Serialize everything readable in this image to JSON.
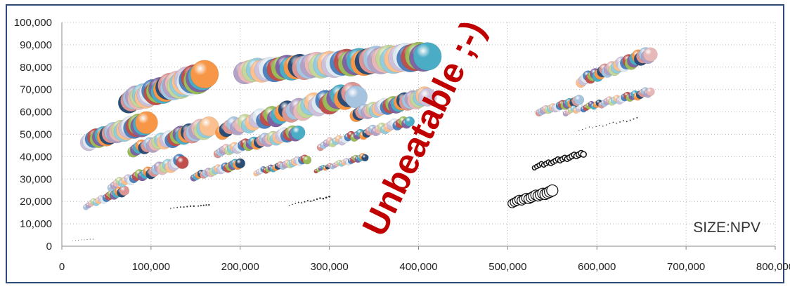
{
  "chart_data": {
    "type": "scatter",
    "title": "",
    "xlabel": "",
    "ylabel": "",
    "xlim": [
      0,
      800000
    ],
    "ylim": [
      0,
      100000
    ],
    "x_ticks": [
      "0",
      "100,000",
      "200,000",
      "300,000",
      "400,000",
      "500,000",
      "600,000",
      "700,000",
      "800,000"
    ],
    "y_ticks": [
      "0",
      "10,000",
      "20,000",
      "30,000",
      "40,000",
      "50,000",
      "60,000",
      "70,000",
      "80,000",
      "90,000",
      "100,000"
    ],
    "grid": "dotted",
    "bubble_size_legend": "SIZE:NPV",
    "annotation": "Unbeatable ;-)",
    "palette": [
      "#4f81bd",
      "#c0504d",
      "#9bbb59",
      "#8064a2",
      "#4bacc6",
      "#f79646",
      "#2c4d75",
      "#d99694",
      "#a6c3e0",
      "#b3a2c7",
      "#e6b9b8",
      "#c4d79b",
      "#93cddd",
      "#fac090",
      "#ccc0da",
      "#dde8f1"
    ],
    "series": [
      {
        "x_start": 12000,
        "x_end": 35000,
        "y_start": 2500,
        "y_end": 3200,
        "n": 8,
        "size_start": 0.4,
        "size_end": 0.6
      },
      {
        "x_start": 27000,
        "x_end": 70000,
        "y_start": 18000,
        "y_end": 25000,
        "n": 16,
        "size_start": 4,
        "size_end": 7
      },
      {
        "x_start": 55000,
        "x_end": 135000,
        "y_start": 27000,
        "y_end": 38000,
        "n": 26,
        "size_start": 5,
        "size_end": 9
      },
      {
        "x_start": 80000,
        "x_end": 165000,
        "y_start": 43000,
        "y_end": 53000,
        "n": 28,
        "size_start": 8,
        "size_end": 14
      },
      {
        "x_start": 30000,
        "x_end": 95000,
        "y_start": 47000,
        "y_end": 55000,
        "n": 24,
        "size_start": 12,
        "size_end": 16
      },
      {
        "x_start": 75000,
        "x_end": 160000,
        "y_start": 65000,
        "y_end": 76000,
        "n": 32,
        "size_start": 15,
        "size_end": 20
      },
      {
        "x_start": 122000,
        "x_end": 148000,
        "y_start": 17000,
        "y_end": 18000,
        "n": 8,
        "size_start": 0.8,
        "size_end": 1.2
      },
      {
        "x_start": 153000,
        "x_end": 165000,
        "y_start": 18000,
        "y_end": 18500,
        "n": 5,
        "size_start": 1,
        "size_end": 1.2
      },
      {
        "x_start": 148000,
        "x_end": 200000,
        "y_start": 31000,
        "y_end": 37000,
        "n": 20,
        "size_start": 5,
        "size_end": 7
      },
      {
        "x_start": 175000,
        "x_end": 265000,
        "y_start": 42000,
        "y_end": 51000,
        "n": 30,
        "size_start": 6,
        "size_end": 10
      },
      {
        "x_start": 180000,
        "x_end": 330000,
        "y_start": 52000,
        "y_end": 68000,
        "n": 36,
        "size_start": 10,
        "size_end": 16
      },
      {
        "x_start": 205000,
        "x_end": 410000,
        "y_start": 78000,
        "y_end": 85000,
        "n": 44,
        "size_start": 16,
        "size_end": 20
      },
      {
        "x_start": 205000,
        "x_end": 250000,
        "y_start": 19500,
        "y_end": 20000,
        "n": 8,
        "size_start": 0.3,
        "size_end": 0.4
      },
      {
        "x_start": 218000,
        "x_end": 275000,
        "y_start": 33000,
        "y_end": 39000,
        "n": 22,
        "size_start": 4,
        "size_end": 6
      },
      {
        "x_start": 255000,
        "x_end": 300000,
        "y_start": 18500,
        "y_end": 22000,
        "n": 14,
        "size_start": 0.8,
        "size_end": 1.4
      },
      {
        "x_start": 285000,
        "x_end": 340000,
        "y_start": 34000,
        "y_end": 40000,
        "n": 22,
        "size_start": 3,
        "size_end": 5
      },
      {
        "x_start": 290000,
        "x_end": 390000,
        "y_start": 45000,
        "y_end": 56000,
        "n": 30,
        "size_start": 5,
        "size_end": 7
      },
      {
        "x_start": 330000,
        "x_end": 410000,
        "y_start": 59000,
        "y_end": 67000,
        "n": 26,
        "size_start": 9,
        "size_end": 13
      },
      {
        "x_start": 505000,
        "x_end": 550000,
        "y_start": 19500,
        "y_end": 24500,
        "n": 18,
        "size_start": 6,
        "size_end": 8,
        "outline_only": true
      },
      {
        "x_start": 530000,
        "x_end": 585000,
        "y_start": 35500,
        "y_end": 41500,
        "n": 22,
        "size_start": 3,
        "size_end": 4,
        "outline_only": true
      },
      {
        "x_start": 535000,
        "x_end": 580000,
        "y_start": 60000,
        "y_end": 65000,
        "n": 18,
        "size_start": 5,
        "size_end": 7
      },
      {
        "x_start": 565000,
        "x_end": 660000,
        "y_start": 60000,
        "y_end": 69000,
        "n": 34,
        "size_start": 4,
        "size_end": 6
      },
      {
        "x_start": 580000,
        "x_end": 645000,
        "y_start": 52000,
        "y_end": 57000,
        "n": 18,
        "size_start": 0.6,
        "size_end": 1
      },
      {
        "x_start": 582000,
        "x_end": 660000,
        "y_start": 74000,
        "y_end": 86000,
        "n": 30,
        "size_start": 7,
        "size_end": 10
      }
    ]
  }
}
